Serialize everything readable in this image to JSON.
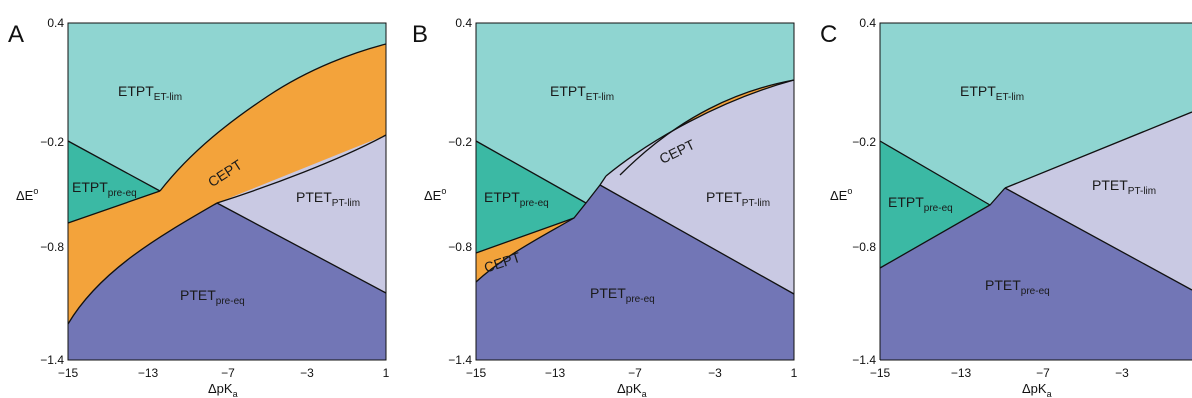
{
  "colors": {
    "etpt_et_lim": "#8fd5d1",
    "etpt_pre_eq": "#3bb9a4",
    "cept": "#f3a33b",
    "ptet_pt_lim": "#c9c9e3",
    "ptet_pre_eq": "#7276b6"
  },
  "axes": {
    "x_label_main": "ΔpK",
    "x_label_sub": "a",
    "y_label_main": "ΔE",
    "y_label_sup": "o",
    "x_ticks": [
      "−15",
      "−13",
      "−7",
      "−3",
      "1"
    ],
    "y_ticks": [
      "0.4",
      "−0.2",
      "−0.8",
      "−1.4"
    ]
  },
  "panels": [
    {
      "letter": "A",
      "regions": [
        {
          "main": "ETPT",
          "sub": "ET-lim"
        },
        {
          "main": "ETPT",
          "sub": "pre-eq"
        },
        {
          "main": "CEPT",
          "sub": ""
        },
        {
          "main": "PTET",
          "sub": "PT-lim"
        },
        {
          "main": "PTET",
          "sub": "pre-eq"
        }
      ]
    },
    {
      "letter": "B",
      "regions": [
        {
          "main": "ETPT",
          "sub": "ET-lim"
        },
        {
          "main": "ETPT",
          "sub": "pre-eq"
        },
        {
          "main": "CEPT",
          "sub": ""
        },
        {
          "main": "CEPT",
          "sub": ""
        },
        {
          "main": "PTET",
          "sub": "PT-lim"
        },
        {
          "main": "PTET",
          "sub": "pre-eq"
        }
      ]
    },
    {
      "letter": "C",
      "regions": [
        {
          "main": "ETPT",
          "sub": "ET-lim"
        },
        {
          "main": "ETPT",
          "sub": "pre-eq"
        },
        {
          "main": "PTET",
          "sub": "PT-lim"
        },
        {
          "main": "PTET",
          "sub": "pre-eq"
        }
      ]
    }
  ]
}
